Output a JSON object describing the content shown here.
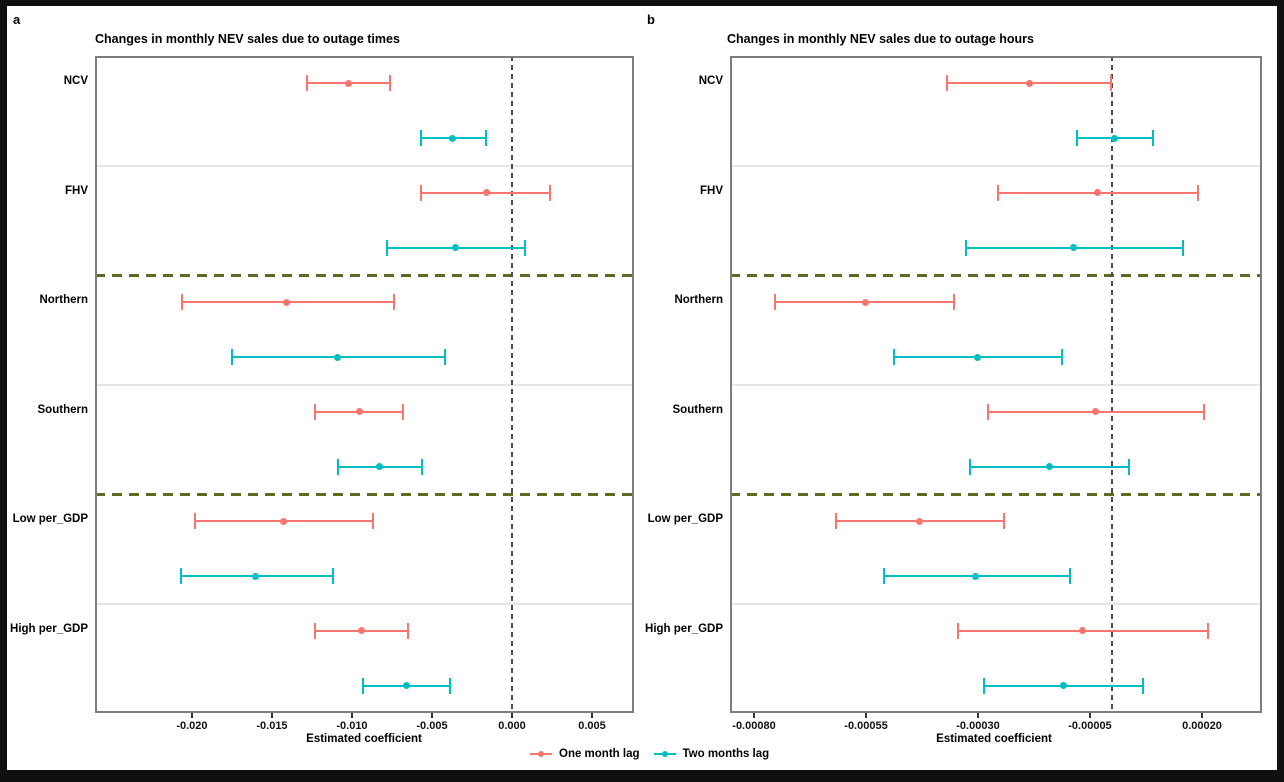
{
  "figure": {
    "panel_labels": {
      "a": "a",
      "b": "b"
    },
    "legend": {
      "items": [
        {
          "label": "One month lag",
          "color": "#F8766D"
        },
        {
          "label": "Two months lag",
          "color": "#00BFC4"
        }
      ]
    },
    "colors": {
      "one_month_lag": "#F8766D",
      "two_months_lag": "#00BFC4",
      "zero_line": "#4d4d4d",
      "dashed_separator": "#5e6b23",
      "gridline": "#e6e6e6",
      "panel_border": "#7d7d7d"
    }
  },
  "chart_data": [
    {
      "type": "forest",
      "panel": "a",
      "title": "Changes in monthly NEV sales due to outage times",
      "xlabel": "Estimated coefficient",
      "xlim": [
        -0.02606,
        0.007625
      ],
      "zero_line": 0,
      "grid": "category-separators-only",
      "xticks": [
        {
          "value": -0.02,
          "label": "-0.020"
        },
        {
          "value": -0.015,
          "label": "-0.015"
        },
        {
          "value": -0.01,
          "label": "-0.010"
        },
        {
          "value": -0.005,
          "label": "-0.005"
        },
        {
          "value": 0.0,
          "label": "0.000"
        },
        {
          "value": 0.005,
          "label": "0.005"
        }
      ],
      "categories": [
        "NCV",
        "FHV",
        "Northern",
        "Southern",
        "Low per_GDP",
        "High per_GDP"
      ],
      "dashed_separators_after_category": [
        "FHV",
        "Southern"
      ],
      "series": [
        {
          "name": "One month lag",
          "color": "#F8766D",
          "points": [
            {
              "category": "NCV",
              "est": -0.0102,
              "lo": -0.0128,
              "hi": -0.0076
            },
            {
              "category": "FHV",
              "est": -0.0016,
              "lo": -0.0057,
              "hi": 0.0024
            },
            {
              "category": "Northern",
              "est": -0.0141,
              "lo": -0.0206,
              "hi": -0.0074
            },
            {
              "category": "Southern",
              "est": -0.0095,
              "lo": -0.0123,
              "hi": -0.0068
            },
            {
              "category": "Low per_GDP",
              "est": -0.0143,
              "lo": -0.0198,
              "hi": -0.0087
            },
            {
              "category": "High per_GDP",
              "est": -0.0094,
              "lo": -0.0123,
              "hi": -0.0065
            }
          ]
        },
        {
          "name": "Two months lag",
          "color": "#00BFC4",
          "points": [
            {
              "category": "NCV",
              "est": -0.0037,
              "lo": -0.0057,
              "hi": -0.0016
            },
            {
              "category": "FHV",
              "est": -0.0035,
              "lo": -0.0078,
              "hi": 0.0008
            },
            {
              "category": "Northern",
              "est": -0.0109,
              "lo": -0.0175,
              "hi": -0.0042
            },
            {
              "category": "Southern",
              "est": -0.0083,
              "lo": -0.0109,
              "hi": -0.0056
            },
            {
              "category": "Low per_GDP",
              "est": -0.016,
              "lo": -0.0207,
              "hi": -0.0112
            },
            {
              "category": "High per_GDP",
              "est": -0.0066,
              "lo": -0.0093,
              "hi": -0.0039
            }
          ]
        }
      ]
    },
    {
      "type": "forest",
      "panel": "b",
      "title": "Changes in monthly NEV sales due to outage hours",
      "xlabel": "Estimated coefficient",
      "xlim": [
        -0.0008536,
        0.000334
      ],
      "zero_line": 0,
      "grid": "category-separators-only",
      "xticks": [
        {
          "value": -0.0008,
          "label": "-0.00080"
        },
        {
          "value": -0.00055,
          "label": "-0.00055"
        },
        {
          "value": -0.0003,
          "label": "-0.00030"
        },
        {
          "value": -5e-05,
          "label": "-0.00005"
        },
        {
          "value": 0.0002,
          "label": "0.00020"
        }
      ],
      "categories": [
        "NCV",
        "FHV",
        "Northern",
        "Southern",
        "Low per_GDP",
        "High per_GDP"
      ],
      "dashed_separators_after_category": [
        "FHV",
        "Southern"
      ],
      "series": [
        {
          "name": "One month lag",
          "color": "#F8766D",
          "points": [
            {
              "category": "NCV",
              "est": -0.000186,
              "lo": -0.000369,
              "hi": -2e-06
            },
            {
              "category": "FHV",
              "est": -3.4e-05,
              "lo": -0.000255,
              "hi": 0.000191
            },
            {
              "category": "Northern",
              "est": -0.000552,
              "lo": -0.000753,
              "hi": -0.000354
            },
            {
              "category": "Southern",
              "est": -3.7e-05,
              "lo": -0.000277,
              "hi": 0.000204
            },
            {
              "category": "Low per_GDP",
              "est": -0.00043,
              "lo": -0.000617,
              "hi": -0.000242
            },
            {
              "category": "High per_GDP",
              "est": -6.6e-05,
              "lo": -0.000345,
              "hi": 0.000213
            }
          ]
        },
        {
          "name": "Two months lag",
          "color": "#00BFC4",
          "points": [
            {
              "category": "NCV",
              "est": 4e-06,
              "lo": -7.9e-05,
              "hi": 9.1e-05
            },
            {
              "category": "FHV",
              "est": -8.6e-05,
              "lo": -0.000327,
              "hi": 0.000157
            },
            {
              "category": "Northern",
              "est": -0.0003,
              "lo": -0.000488,
              "hi": -0.000113
            },
            {
              "category": "Southern",
              "est": -0.000141,
              "lo": -0.000318,
              "hi": 3.8e-05
            },
            {
              "category": "Low per_GDP",
              "est": -0.000305,
              "lo": -0.00051,
              "hi": -9.5e-05
            },
            {
              "category": "High per_GDP",
              "est": -0.00011,
              "lo": -0.000286,
              "hi": 6.8e-05
            }
          ]
        }
      ]
    }
  ]
}
